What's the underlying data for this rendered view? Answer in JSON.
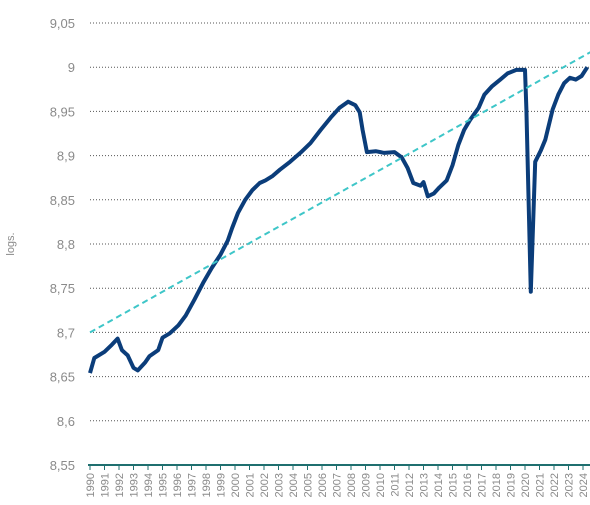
{
  "chart_data": {
    "type": "line",
    "ylabel": "logs.",
    "xlim": [
      1990,
      2024.5
    ],
    "xticks": [
      1990,
      1991,
      1992,
      1993,
      1994,
      1995,
      1996,
      1997,
      1998,
      1999,
      2000,
      2001,
      2002,
      2003,
      2004,
      2005,
      2006,
      2007,
      2008,
      2009,
      2010,
      2011,
      2012,
      2013,
      2014,
      2015,
      2016,
      2017,
      2018,
      2019,
      2020,
      2021,
      2022,
      2023,
      2024
    ],
    "ylim": [
      8.55,
      9.05
    ],
    "yticks": [
      {
        "value": 8.55,
        "label": "8,55"
      },
      {
        "value": 8.6,
        "label": "8,6"
      },
      {
        "value": 8.65,
        "label": "8,65"
      },
      {
        "value": 8.7,
        "label": "8,7"
      },
      {
        "value": 8.75,
        "label": "8,75"
      },
      {
        "value": 8.8,
        "label": "8,8"
      },
      {
        "value": 8.85,
        "label": "8,85"
      },
      {
        "value": 8.9,
        "label": "8,9"
      },
      {
        "value": 8.95,
        "label": "8,95"
      },
      9,
      {
        "value": 9.05,
        "label": "9,05"
      }
    ],
    "grid": true,
    "series": [
      {
        "color": "#0b3d7a",
        "dash": false,
        "x": [
          1990,
          1990.3,
          1991,
          1991.5,
          1991.9,
          1992.2,
          1992.6,
          1993.0,
          1993.3,
          1993.8,
          1994.1,
          1994.7,
          1995,
          1995.5,
          1996.1,
          1996.6,
          1997.2,
          1997.8,
          1998.4,
          1999,
          1999.5,
          1999.8,
          2000.2,
          2000.7,
          2001.2,
          2001.7,
          2002.1,
          2002.6,
          2003.1,
          2003.8,
          2004.5,
          2005.2,
          2005.9,
          2006.6,
          2007.2,
          2007.8,
          2008.3,
          2008.6,
          2008.8,
          2009.1,
          2009.7,
          2010.3,
          2011.0,
          2011.5,
          2011.9,
          2012.3,
          2012.8,
          2013.0,
          2013.3,
          2013.7,
          2014.1,
          2014.6,
          2015.0,
          2015.4,
          2015.8,
          2016.2,
          2016.8,
          2017.2,
          2017.7,
          2018.3,
          2018.8,
          2019.4,
          2020,
          2020.1,
          2020.4,
          2020.7,
          2021.1,
          2021.4,
          2021.9,
          2022.3,
          2022.7,
          2023.1,
          2023.5,
          2023.9,
          2024.3
        ],
        "values": [
          8.654,
          8.671,
          8.678,
          8.686,
          8.693,
          8.68,
          8.674,
          8.66,
          8.657,
          8.666,
          8.673,
          8.68,
          8.694,
          8.699,
          8.708,
          8.719,
          8.737,
          8.756,
          8.773,
          8.788,
          8.804,
          8.818,
          8.835,
          8.85,
          8.861,
          8.869,
          8.872,
          8.877,
          8.884,
          8.893,
          8.903,
          8.914,
          8.929,
          8.943,
          8.954,
          8.961,
          8.957,
          8.949,
          8.929,
          8.904,
          8.905,
          8.903,
          8.904,
          8.898,
          8.886,
          8.869,
          8.866,
          8.87,
          8.854,
          8.857,
          8.864,
          8.872,
          8.889,
          8.912,
          8.929,
          8.94,
          8.954,
          8.969,
          8.978,
          8.986,
          8.993,
          8.997,
          8.997,
          8.952,
          8.746,
          8.893,
          8.906,
          8.918,
          8.952,
          8.969,
          8.982,
          8.988,
          8.986,
          8.99,
          9.0
        ]
      },
      {
        "color": "#3ec6c8",
        "dash": true,
        "x": [
          1990,
          2024.5
        ],
        "values": [
          8.7,
          9.017
        ]
      }
    ]
  }
}
